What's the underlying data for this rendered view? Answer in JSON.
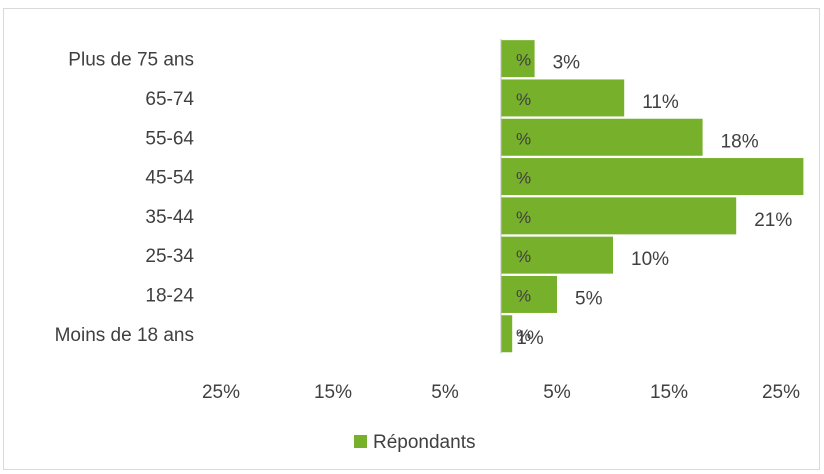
{
  "chart_data": {
    "type": "bar",
    "orientation": "horizontal",
    "categories": [
      "Plus de 75 ans",
      "65-74",
      "55-64",
      "45-54",
      "35-44",
      "25-34",
      "18-24",
      "Moins de 18 ans"
    ],
    "series": [
      {
        "name": "Répondants",
        "values": [
          3,
          11,
          18,
          27,
          21,
          10,
          5,
          1
        ],
        "color": "#77b02a",
        "value_labels": [
          "3%",
          "11%",
          "18%",
          "",
          "21%",
          "10%",
          "5%",
          "1%"
        ],
        "inbar_labels": [
          "%",
          "%",
          "%",
          "%",
          "%",
          "%",
          "%",
          "%"
        ]
      }
    ],
    "x_tick_labels": [
      "25%",
      "15%",
      "5%",
      "5%",
      "15%",
      "25%"
    ],
    "xlim": [
      -30,
      30
    ],
    "xlabel": "",
    "ylabel": "",
    "title": "",
    "grid": false,
    "legend": {
      "position": "bottom",
      "entries": [
        "Répondants"
      ]
    }
  }
}
